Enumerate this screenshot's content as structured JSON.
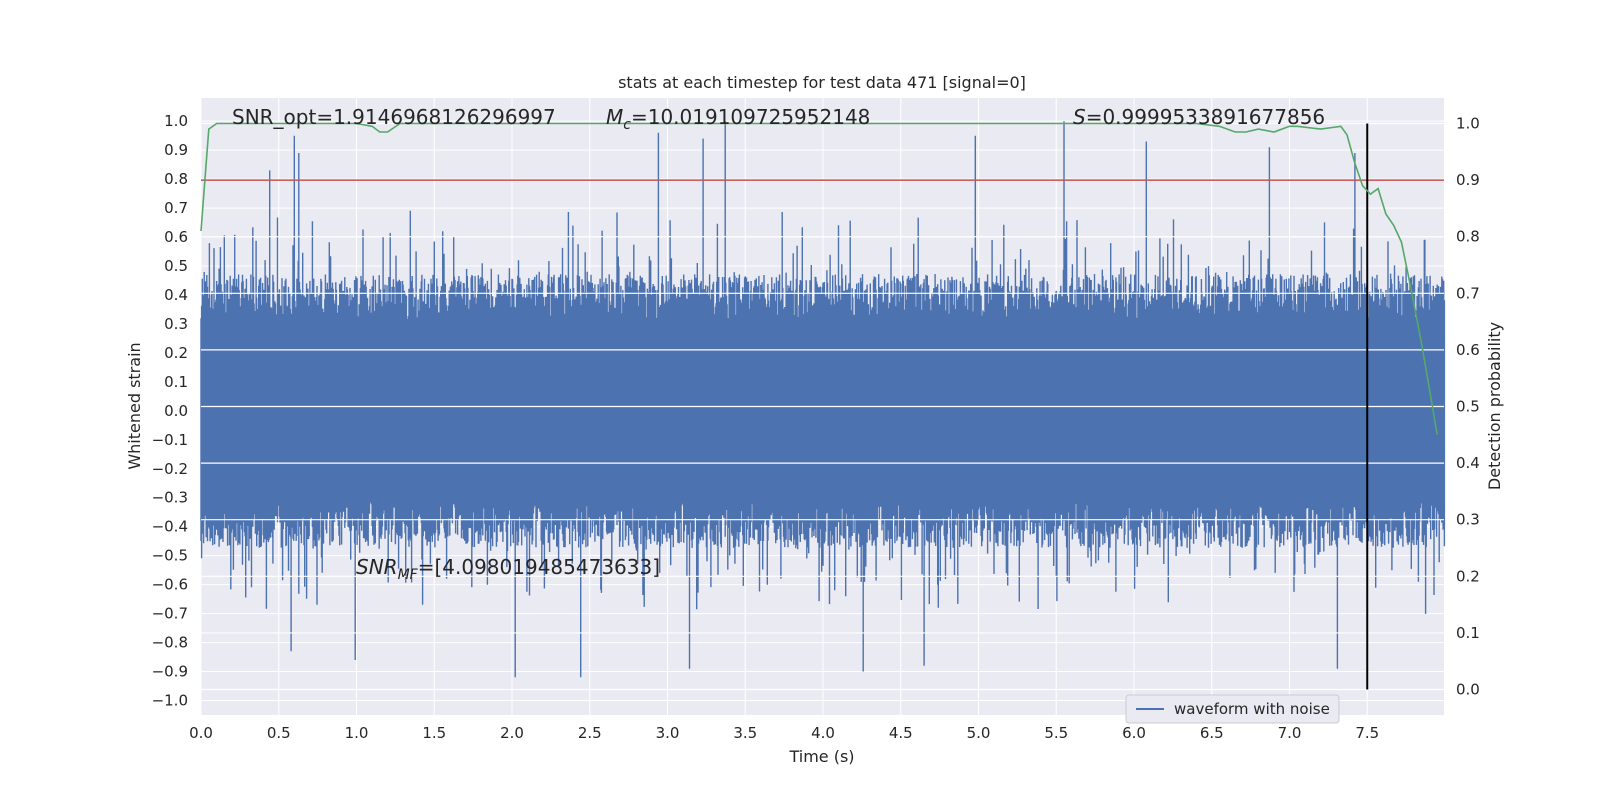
{
  "chart_data": {
    "type": "line",
    "title": "stats at each timestep for test data 471 [signal=0]",
    "xlabel": "Time (s)",
    "ylabel": "Whitened strain",
    "y2label": "Detection probability",
    "xlim": [
      0.0,
      8.0
    ],
    "ylim": [
      -1.05,
      1.08
    ],
    "y2lim": [
      -0.045,
      1.045
    ],
    "xticks": [
      "0.0",
      "0.5",
      "1.0",
      "1.5",
      "2.0",
      "2.5",
      "3.0",
      "3.5",
      "4.0",
      "4.5",
      "5.0",
      "5.5",
      "6.0",
      "6.5",
      "7.0",
      "7.5"
    ],
    "xtick_values": [
      0.0,
      0.5,
      1.0,
      1.5,
      2.0,
      2.5,
      3.0,
      3.5,
      4.0,
      4.5,
      5.0,
      5.5,
      6.0,
      6.5,
      7.0,
      7.5
    ],
    "yticks": [
      "1.0",
      "0.9",
      "0.8",
      "0.7",
      "0.6",
      "0.5",
      "0.4",
      "0.3",
      "0.2",
      "0.1",
      "0.0",
      "−0.1",
      "−0.2",
      "−0.3",
      "−0.4",
      "−0.5",
      "−0.6",
      "−0.7",
      "−0.8",
      "−0.9",
      "−1.0"
    ],
    "ytick_values": [
      1.0,
      0.9,
      0.8,
      0.7,
      0.6,
      0.5,
      0.4,
      0.3,
      0.2,
      0.1,
      0.0,
      -0.1,
      -0.2,
      -0.3,
      -0.4,
      -0.5,
      -0.6,
      -0.7,
      -0.8,
      -0.9,
      -1.0
    ],
    "y2ticks": [
      "1.0",
      "0.9",
      "0.8",
      "0.7",
      "0.6",
      "0.5",
      "0.4",
      "0.3",
      "0.2",
      "0.1",
      "0.0"
    ],
    "y2tick_values": [
      1.0,
      0.9,
      0.8,
      0.7,
      0.6,
      0.5,
      0.4,
      0.3,
      0.2,
      0.1,
      0.0
    ],
    "annotations": {
      "snr_opt": "SNR_opt=1.9146968126296997",
      "mc_symbol": "M",
      "mc_sub": "c",
      "mc_value": "=10.019109725952148",
      "s_symbol": "S",
      "s_value": "=0.9999533891677856",
      "snr_mf_symbol": "SNR",
      "snr_mf_sub": "MF",
      "snr_mf_value": "=[4.098019485473633]"
    },
    "legend": {
      "label": "waveform with noise",
      "location": "lower-right"
    },
    "threshold": {
      "value": 0.9,
      "axis": "right",
      "color": "#c44e52"
    },
    "vline": {
      "x": 7.5,
      "y2_from": 0.0,
      "y2_to": 1.0,
      "color": "#000000"
    },
    "series": [
      {
        "name": "waveform with noise",
        "axis": "left",
        "color": "#4c72b0",
        "kind": "dense-noise",
        "sample_rate_hz": 240,
        "envelope_typical": 0.45,
        "peaks": [
          {
            "x": 0.44,
            "y": 0.83
          },
          {
            "x": 0.6,
            "y": 0.95
          },
          {
            "x": 0.63,
            "y": 0.89
          },
          {
            "x": 2.94,
            "y": 0.96
          },
          {
            "x": 3.23,
            "y": 0.94
          },
          {
            "x": 3.37,
            "y": 1.0
          },
          {
            "x": 4.98,
            "y": 0.95
          },
          {
            "x": 5.55,
            "y": 1.0
          },
          {
            "x": 6.08,
            "y": 0.93
          },
          {
            "x": 6.87,
            "y": 0.91
          },
          {
            "x": 7.42,
            "y": 0.89
          },
          {
            "x": 0.58,
            "y": -0.83
          },
          {
            "x": 0.99,
            "y": -0.86
          },
          {
            "x": 2.02,
            "y": -0.92
          },
          {
            "x": 2.44,
            "y": -0.92
          },
          {
            "x": 3.14,
            "y": -0.89
          },
          {
            "x": 4.26,
            "y": -0.9
          },
          {
            "x": 4.65,
            "y": -0.88
          },
          {
            "x": 7.31,
            "y": -0.89
          }
        ]
      },
      {
        "name": "Detection probability",
        "axis": "right",
        "color": "#55a868",
        "x": [
          0.0,
          0.05,
          0.1,
          0.15,
          0.3,
          0.5,
          0.8,
          1.0,
          1.1,
          1.15,
          1.2,
          1.28,
          1.35,
          1.6,
          2.0,
          3.0,
          4.0,
          5.0,
          6.0,
          6.4,
          6.55,
          6.65,
          6.72,
          6.8,
          6.9,
          7.0,
          7.05,
          7.2,
          7.33,
          7.37,
          7.42,
          7.47,
          7.52,
          7.57,
          7.62,
          7.67,
          7.72,
          7.78,
          7.85,
          7.9,
          7.95
        ],
        "y": [
          0.81,
          0.99,
          1.0,
          1.0,
          1.0,
          1.0,
          1.0,
          1.0,
          0.995,
          0.985,
          0.985,
          1.0,
          1.0,
          1.0,
          1.0,
          1.0,
          1.0,
          1.0,
          1.0,
          1.0,
          0.995,
          0.985,
          0.985,
          0.99,
          0.985,
          0.995,
          0.995,
          0.99,
          0.995,
          0.98,
          0.93,
          0.89,
          0.875,
          0.885,
          0.84,
          0.82,
          0.79,
          0.71,
          0.61,
          0.53,
          0.45
        ]
      }
    ]
  }
}
